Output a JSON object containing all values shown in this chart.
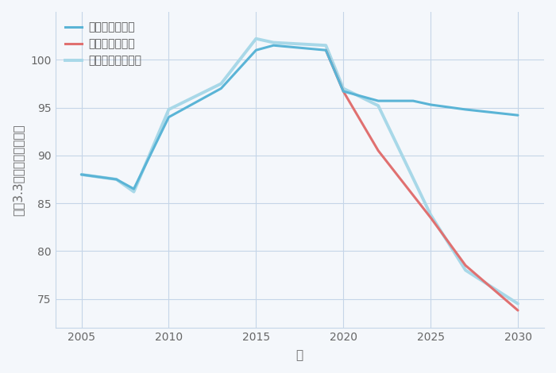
{
  "xlabel": "年",
  "ylabel": "坪（3.3㎡）単価（万円）",
  "background_color": "#f4f7fb",
  "plot_bg_color": "#f4f7fb",
  "grid_color": "#c5d5e8",
  "xlim": [
    2003.5,
    2031.5
  ],
  "ylim": [
    72,
    105
  ],
  "xticks": [
    2005,
    2010,
    2015,
    2020,
    2025,
    2030
  ],
  "yticks": [
    75,
    80,
    85,
    90,
    95,
    100
  ],
  "good_scenario": {
    "label": "グッドシナリオ",
    "color": "#5ab4d6",
    "linewidth": 2.2,
    "x": [
      2005,
      2007,
      2008,
      2010,
      2013,
      2015,
      2016,
      2019,
      2020,
      2022,
      2024,
      2025,
      2027,
      2030
    ],
    "y": [
      88.0,
      87.5,
      86.5,
      94.0,
      97.0,
      101.0,
      101.5,
      101.0,
      96.7,
      95.7,
      95.7,
      95.3,
      94.8,
      94.2
    ]
  },
  "bad_scenario": {
    "label": "バッドシナリオ",
    "color": "#e07070",
    "linewidth": 2.2,
    "x": [
      2019,
      2020,
      2022,
      2025,
      2027,
      2030
    ],
    "y": [
      101.0,
      96.7,
      90.5,
      83.5,
      78.5,
      73.8
    ]
  },
  "normal_scenario": {
    "label": "ノーマルシナリオ",
    "color": "#a8d8e8",
    "linewidth": 2.8,
    "x": [
      2005,
      2007,
      2008,
      2010,
      2013,
      2015,
      2016,
      2019,
      2020,
      2022,
      2025,
      2027,
      2030
    ],
    "y": [
      88.0,
      87.5,
      86.2,
      94.8,
      97.5,
      102.2,
      101.8,
      101.5,
      97.0,
      95.2,
      83.8,
      78.0,
      74.5
    ]
  },
  "title_color": "#2c3e50",
  "title_fontsize": 21,
  "axis_label_color": "#666666",
  "axis_label_fontsize": 11,
  "tick_fontsize": 10,
  "legend_fontsize": 10
}
